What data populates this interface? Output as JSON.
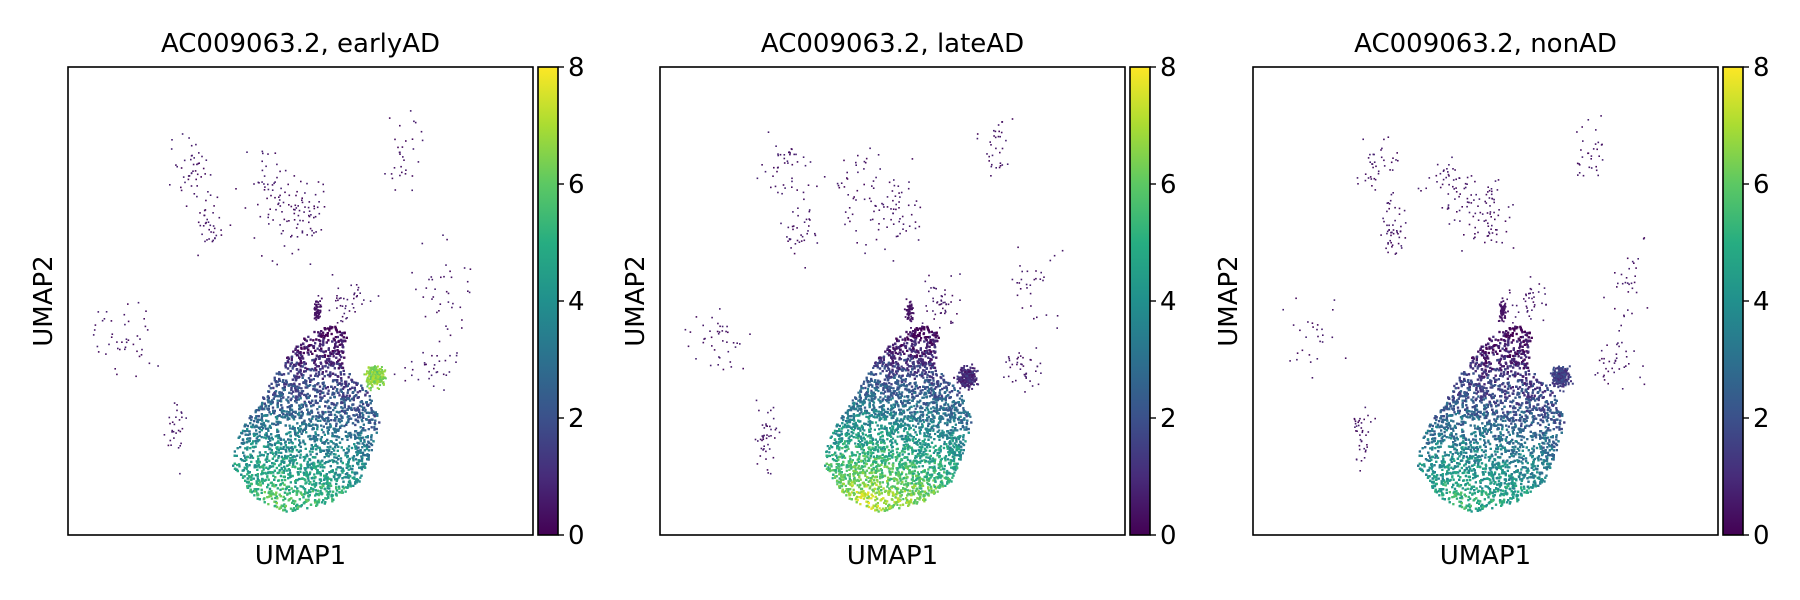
{
  "colormap": [
    "#440154",
    "#472c7a",
    "#3b518b",
    "#2c718e",
    "#21908d",
    "#27ad81",
    "#5cc863",
    "#aadc32",
    "#fde725"
  ],
  "chart_data": [
    {
      "type": "scatter",
      "title": "AC009063.2, earlyAD",
      "xlabel": "UMAP1",
      "ylabel": "UMAP2",
      "colorbar": {
        "range": [
          0,
          8
        ],
        "ticks": [
          "0",
          "2",
          "4",
          "6",
          "8"
        ]
      },
      "main_cluster_peak_value": 5.8,
      "protrusion_value": 6.5
    },
    {
      "type": "scatter",
      "title": "AC009063.2, lateAD",
      "xlabel": "UMAP1",
      "ylabel": "UMAP2",
      "colorbar": {
        "range": [
          0,
          8
        ],
        "ticks": [
          "0",
          "2",
          "4",
          "6",
          "8"
        ]
      },
      "main_cluster_peak_value": 7.2,
      "protrusion_value": 1.0
    },
    {
      "type": "scatter",
      "title": "AC009063.2, nonAD",
      "xlabel": "UMAP1",
      "ylabel": "UMAP2",
      "colorbar": {
        "range": [
          0,
          8
        ],
        "ticks": [
          "0",
          "2",
          "4",
          "6",
          "8"
        ]
      },
      "main_cluster_peak_value": 5.2,
      "protrusion_value": 1.5
    }
  ]
}
